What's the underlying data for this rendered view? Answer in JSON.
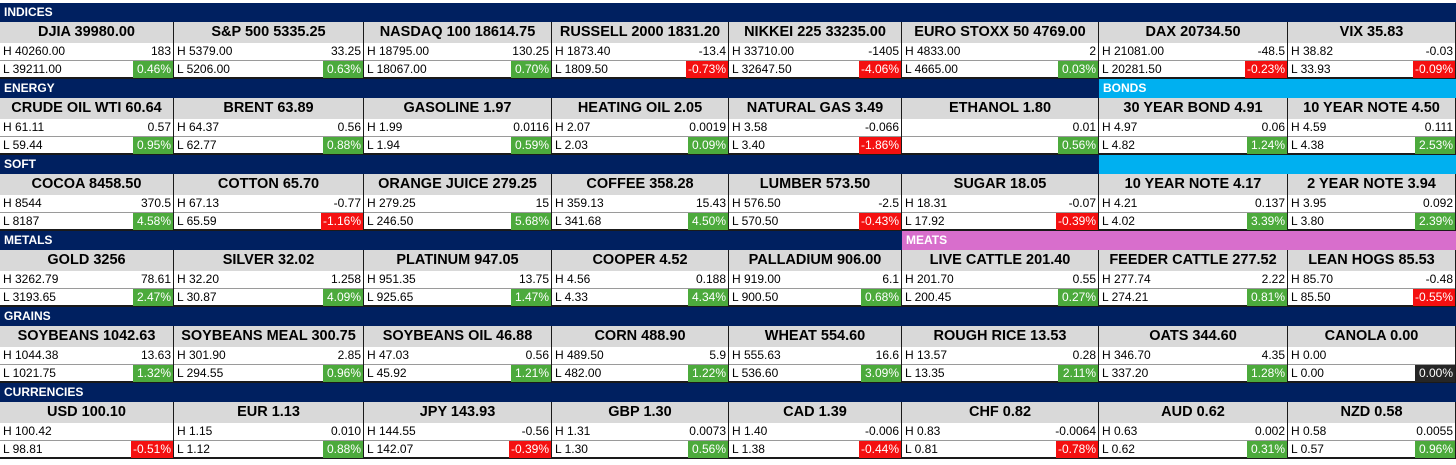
{
  "colors": {
    "section_header": "#002060",
    "bonds_header": "#00b0f0",
    "meats_header": "#d86ecc",
    "positive": "#4caa3c",
    "negative": "#f41010",
    "flat": "#262626",
    "title_bg": "#d9d9d9"
  },
  "bands": [
    {
      "headers": [
        {
          "text": "INDICES",
          "span": 8,
          "color": "#002060"
        }
      ],
      "cells": [
        {
          "title": "DJIA  39980.00",
          "high": "H 40260.00",
          "change": "183",
          "low": "L 39211.00",
          "pct": "0.46%",
          "dir": "pos"
        },
        {
          "title": "S&P 500 5335.25",
          "high": "H 5379.00",
          "change": "33.25",
          "low": "L 5206.00",
          "pct": "0.63%",
          "dir": "pos"
        },
        {
          "title": "NASDAQ 100  18614.75",
          "high": "H 18795.00",
          "change": "130.25",
          "low": "L 18067.00",
          "pct": "0.70%",
          "dir": "pos"
        },
        {
          "title": "RUSSELL 2000  1831.20",
          "high": "H 1873.40",
          "change": "-13.4",
          "low": "L 1809.50",
          "pct": "-0.73%",
          "dir": "neg"
        },
        {
          "title": "NIKKEI 225  33235.00",
          "high": "H 33710.00",
          "change": "-1405",
          "low": "L 32647.50",
          "pct": "-4.06%",
          "dir": "neg"
        },
        {
          "title": "EURO STOXX 50  4769.00",
          "high": "H 4833.00",
          "change": "2",
          "low": "L 4665.00",
          "pct": "0.03%",
          "dir": "pos"
        },
        {
          "title": "DAX  20734.50",
          "high": "H 21081.00",
          "change": "-48.5",
          "low": "L 20281.50",
          "pct": "-0.23%",
          "dir": "neg"
        },
        {
          "title": "VIX  35.83",
          "high": "H 38.82",
          "change": "-0.03",
          "low": "L 33.93",
          "pct": "-0.09%",
          "dir": "neg"
        }
      ]
    },
    {
      "headers": [
        {
          "text": "ENERGY",
          "span": 6,
          "color": "#002060"
        },
        {
          "text": "BONDS",
          "span": 2,
          "color": "#00b0f0"
        }
      ],
      "cells": [
        {
          "title": "CRUDE OIL WTI  60.64",
          "high": "H 61.11",
          "change": "0.57",
          "low": "L 59.44",
          "pct": "0.95%",
          "dir": "pos"
        },
        {
          "title": "BRENT  63.89",
          "high": "H 64.37",
          "change": "0.56",
          "low": "L 62.77",
          "pct": "0.88%",
          "dir": "pos"
        },
        {
          "title": "GASOLINE  1.97",
          "high": "H 1.99",
          "change": "0.0116",
          "low": "L 1.94",
          "pct": "0.59%",
          "dir": "pos"
        },
        {
          "title": "HEATING OIL  2.05",
          "high": "H 2.07",
          "change": "0.0019",
          "low": "L 2.03",
          "pct": "0.09%",
          "dir": "pos"
        },
        {
          "title": "NATURAL GAS  3.49",
          "high": "H 3.58",
          "change": "-0.066",
          "low": "L 3.40",
          "pct": "-1.86%",
          "dir": "neg"
        },
        {
          "title": "ETHANOL  1.80",
          "high": "",
          "change": "0.01",
          "low": "",
          "pct": "0.56%",
          "dir": "pos"
        },
        {
          "title": "30 YEAR BOND  4.91",
          "high": "H 4.97",
          "change": "0.06",
          "low": "L 4.82",
          "pct": "1.24%",
          "dir": "pos"
        },
        {
          "title": "10 YEAR NOTE  4.50",
          "high": "H 4.59",
          "change": "0.111",
          "low": "L 4.38",
          "pct": "2.53%",
          "dir": "pos"
        }
      ]
    },
    {
      "headers": [
        {
          "text": "SOFT",
          "span": 6,
          "color": "#002060"
        },
        {
          "text": "",
          "span": 2,
          "color": "#00b0f0"
        }
      ],
      "cells": [
        {
          "title": "COCOA  8458.50",
          "high": "H 8544",
          "change": "370.5",
          "low": "L 8187",
          "pct": "4.58%",
          "dir": "pos"
        },
        {
          "title": "COTTON  65.70",
          "high": "H 67.13",
          "change": "-0.77",
          "low": "L 65.59",
          "pct": "-1.16%",
          "dir": "neg"
        },
        {
          "title": "ORANGE JUICE  279.25",
          "high": "H 279.25",
          "change": "15",
          "low": "L 246.50",
          "pct": "5.68%",
          "dir": "pos"
        },
        {
          "title": "COFFEE  358.28",
          "high": "H 359.13",
          "change": "15.43",
          "low": "L 341.68",
          "pct": "4.50%",
          "dir": "pos"
        },
        {
          "title": "LUMBER  573.50",
          "high": "H 576.50",
          "change": "-2.5",
          "low": "L 570.50",
          "pct": "-0.43%",
          "dir": "neg"
        },
        {
          "title": "SUGAR  18.05",
          "high": "H 18.31",
          "change": "-0.07",
          "low": "L 17.92",
          "pct": "-0.39%",
          "dir": "neg"
        },
        {
          "title": "10 YEAR NOTE  4.17",
          "high": "H 4.21",
          "change": "0.137",
          "low": "L 4.02",
          "pct": "3.39%",
          "dir": "pos"
        },
        {
          "title": "2 YEAR NOTE  3.94",
          "high": "H 3.95",
          "change": "0.092",
          "low": "L 3.80",
          "pct": "2.39%",
          "dir": "pos"
        }
      ]
    },
    {
      "headers": [
        {
          "text": "METALS",
          "span": 5,
          "color": "#002060"
        },
        {
          "text": "MEATS",
          "span": 3,
          "color": "#d86ecc"
        }
      ],
      "cells": [
        {
          "title": "GOLD  3256",
          "high": "H 3262.79",
          "change": "78.61",
          "low": "L 3193.65",
          "pct": "2.47%",
          "dir": "pos"
        },
        {
          "title": "SILVER  32.02",
          "high": "H 32.20",
          "change": "1.258",
          "low": "L 30.87",
          "pct": "4.09%",
          "dir": "pos"
        },
        {
          "title": "PLATINUM  947.05",
          "high": "H 951.35",
          "change": "13.75",
          "low": "L 925.65",
          "pct": "1.47%",
          "dir": "pos"
        },
        {
          "title": "COOPER  4.52",
          "high": "H 4.56",
          "change": "0.188",
          "low": "L 4.33",
          "pct": "4.34%",
          "dir": "pos"
        },
        {
          "title": "PALLADIUM  906.00",
          "high": "H 919.00",
          "change": "6.1",
          "low": "L 900.50",
          "pct": "0.68%",
          "dir": "pos"
        },
        {
          "title": "LIVE CATTLE  201.40",
          "high": "H 201.70",
          "change": "0.55",
          "low": "L 200.45",
          "pct": "0.27%",
          "dir": "pos"
        },
        {
          "title": "FEEDER CATTLE  277.52",
          "high": "H 277.74",
          "change": "2.22",
          "low": "L 274.21",
          "pct": "0.81%",
          "dir": "pos"
        },
        {
          "title": "LEAN HOGS  85.53",
          "high": "H 85.70",
          "change": "-0.48",
          "low": "L 85.50",
          "pct": "-0.55%",
          "dir": "neg"
        }
      ]
    },
    {
      "headers": [
        {
          "text": "GRAINS",
          "span": 8,
          "color": "#002060"
        }
      ],
      "cells": [
        {
          "title": "SOYBEANS  1042.63",
          "high": "H 1044.38",
          "change": "13.63",
          "low": "L 1021.75",
          "pct": "1.32%",
          "dir": "pos"
        },
        {
          "title": "SOYBEANS MEAL  300.75",
          "high": "H 301.90",
          "change": "2.85",
          "low": "L 294.55",
          "pct": "0.96%",
          "dir": "pos"
        },
        {
          "title": "SOYBEANS OIL  46.88",
          "high": "H 47.03",
          "change": "0.56",
          "low": "L 45.92",
          "pct": "1.21%",
          "dir": "pos"
        },
        {
          "title": "CORN  488.90",
          "high": "H 489.50",
          "change": "5.9",
          "low": "L 482.00",
          "pct": "1.22%",
          "dir": "pos"
        },
        {
          "title": "WHEAT  554.60",
          "high": "H 555.63",
          "change": "16.6",
          "low": "L 536.60",
          "pct": "3.09%",
          "dir": "pos"
        },
        {
          "title": "ROUGH RICE  13.53",
          "high": "H 13.57",
          "change": "0.28",
          "low": "L 13.35",
          "pct": "2.11%",
          "dir": "pos"
        },
        {
          "title": "OATS  344.60",
          "high": "H 346.70",
          "change": "4.35",
          "low": "L 337.20",
          "pct": "1.28%",
          "dir": "pos"
        },
        {
          "title": "CANOLA  0.00",
          "high": "H 0.00",
          "change": "",
          "low": "L 0.00",
          "pct": "0.00%",
          "dir": "flat"
        }
      ]
    },
    {
      "headers": [
        {
          "text": "CURRENCIES",
          "span": 8,
          "color": "#002060"
        }
      ],
      "cells": [
        {
          "title": "USD  100.10",
          "high": "H 100.42",
          "change": "",
          "low": "L 98.81",
          "pct": "-0.51%",
          "dir": "neg"
        },
        {
          "title": "EUR  1.13",
          "high": "H 1.15",
          "change": "0.010",
          "low": "L 1.12",
          "pct": "0.88%",
          "dir": "pos"
        },
        {
          "title": "JPY  143.93",
          "high": "H 144.55",
          "change": "-0.56",
          "low": "L 142.07",
          "pct": "-0.39%",
          "dir": "neg"
        },
        {
          "title": "GBP  1.30",
          "high": "H 1.31",
          "change": "0.0073",
          "low": "L 1.30",
          "pct": "0.56%",
          "dir": "pos"
        },
        {
          "title": "CAD  1.39",
          "high": "H 1.40",
          "change": "-0.006",
          "low": "L 1.38",
          "pct": "-0.44%",
          "dir": "neg"
        },
        {
          "title": "CHF  0.82",
          "high": "H 0.83",
          "change": "-0.0064",
          "low": "L 0.81",
          "pct": "-0.78%",
          "dir": "neg"
        },
        {
          "title": "AUD  0.62",
          "high": "H 0.63",
          "change": "0.002",
          "low": "L 0.62",
          "pct": "0.31%",
          "dir": "pos"
        },
        {
          "title": "NZD  0.58",
          "high": "H 0.58",
          "change": "0.0055",
          "low": "L 0.57",
          "pct": "0.96%",
          "dir": "pos"
        }
      ]
    }
  ]
}
